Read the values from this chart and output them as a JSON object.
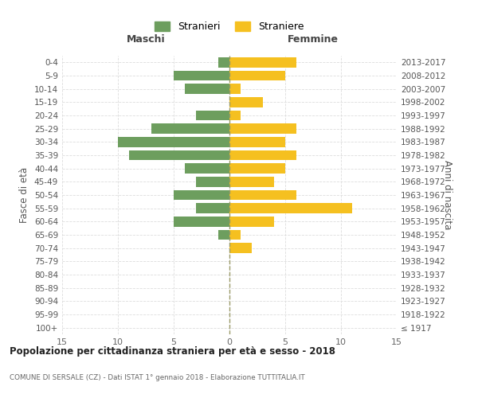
{
  "age_groups": [
    "100+",
    "95-99",
    "90-94",
    "85-89",
    "80-84",
    "75-79",
    "70-74",
    "65-69",
    "60-64",
    "55-59",
    "50-54",
    "45-49",
    "40-44",
    "35-39",
    "30-34",
    "25-29",
    "20-24",
    "15-19",
    "10-14",
    "5-9",
    "0-4"
  ],
  "birth_years": [
    "≤ 1917",
    "1918-1922",
    "1923-1927",
    "1928-1932",
    "1933-1937",
    "1938-1942",
    "1943-1947",
    "1948-1952",
    "1953-1957",
    "1958-1962",
    "1963-1967",
    "1968-1972",
    "1973-1977",
    "1978-1982",
    "1983-1987",
    "1988-1992",
    "1993-1997",
    "1998-2002",
    "2003-2007",
    "2008-2012",
    "2013-2017"
  ],
  "males": [
    0,
    0,
    0,
    0,
    0,
    0,
    0,
    1,
    5,
    3,
    5,
    3,
    4,
    9,
    10,
    7,
    3,
    0,
    4,
    5,
    1
  ],
  "females": [
    0,
    0,
    0,
    0,
    0,
    0,
    2,
    1,
    4,
    11,
    6,
    4,
    5,
    6,
    5,
    6,
    1,
    3,
    1,
    5,
    6
  ],
  "male_color": "#6d9e5e",
  "female_color": "#f5c020",
  "grid_color": "#dddddd",
  "dashed_line_color": "#999966",
  "title": "Popolazione per cittadinanza straniera per età e sesso - 2018",
  "subtitle": "COMUNE DI SERSALE (CZ) - Dati ISTAT 1° gennaio 2018 - Elaborazione TUTTITALIA.IT",
  "xlabel_left": "Maschi",
  "xlabel_right": "Femmine",
  "ylabel_left": "Fasce di età",
  "ylabel_right": "Anni di nascita",
  "legend_stranieri": "Stranieri",
  "legend_straniere": "Straniere",
  "xlim": 15
}
